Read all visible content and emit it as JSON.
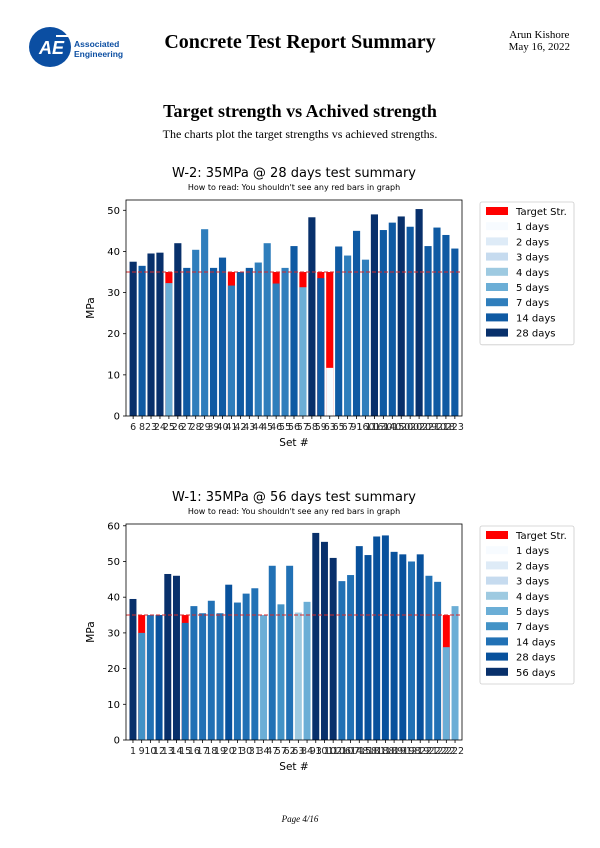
{
  "header": {
    "logo_text_line1": "Associated",
    "logo_text_line2": "Engineering",
    "title": "Concrete Test Report Summary",
    "author": "Arun Kishore",
    "date": "May 16, 2022"
  },
  "section": {
    "title": "Target strength vs Achived strength",
    "description": "The charts plot the target strengths vs achieved strengths."
  },
  "footer": {
    "page": "Page 4/16"
  },
  "colors": {
    "target": "#ff0000",
    "target_line": "#d62728"
  },
  "chart_data": [
    {
      "type": "bar",
      "title": "W-2: 35MPa @ 28 days test summary",
      "subtitle": "How to read: You shouldn't see any red bars in graph",
      "xlabel": "Set #",
      "ylabel": "MPa",
      "ylim": [
        0,
        52.5
      ],
      "yticks": [
        0,
        10,
        20,
        30,
        40,
        50
      ],
      "target": 35,
      "legend_position": "outside-right",
      "categories": [
        "6",
        "8",
        "23",
        "24",
        "25",
        "26",
        "27",
        "28",
        "29",
        "39",
        "40",
        "41",
        "42",
        "43",
        "44",
        "45",
        "46",
        "55",
        "56",
        "57",
        "58",
        "59",
        "63",
        "65",
        "67",
        "91",
        "160",
        "116",
        "130",
        "140",
        "150",
        "200",
        "202",
        "209",
        "210",
        "218",
        "223"
      ],
      "series_order": [
        "Target Str.",
        "1 days",
        "2 days",
        "3 days",
        "4 days",
        "5 days",
        "7 days",
        "14 days",
        "28 days"
      ],
      "series_colors": [
        "#ff0000",
        "#f7fbff",
        "#deebf7",
        "#c6dbef",
        "#9ecae1",
        "#6baed6",
        "#2f7ebc",
        "#0f5aa3",
        "#08306b"
      ],
      "values": [
        {
          "set": "6",
          "age": "28 days",
          "value": 37.5
        },
        {
          "set": "8",
          "age": "14 days",
          "value": 36.5
        },
        {
          "set": "23",
          "age": "28 days",
          "value": 39.5
        },
        {
          "set": "24",
          "age": "28 days",
          "value": 39.7
        },
        {
          "set": "25",
          "age": "5 days",
          "value": 32.3
        },
        {
          "set": "26",
          "age": "28 days",
          "value": 42
        },
        {
          "set": "27",
          "age": "14 days",
          "value": 36
        },
        {
          "set": "28",
          "age": "7 days",
          "value": 40.4
        },
        {
          "set": "29",
          "age": "7 days",
          "value": 45.4
        },
        {
          "set": "39",
          "age": "14 days",
          "value": 36
        },
        {
          "set": "40",
          "age": "14 days",
          "value": 38.5
        },
        {
          "set": "41",
          "age": "7 days",
          "value": 31.7
        },
        {
          "set": "42",
          "age": "14 days",
          "value": 35
        },
        {
          "set": "43",
          "age": "14 days",
          "value": 36
        },
        {
          "set": "44",
          "age": "7 days",
          "value": 37.3
        },
        {
          "set": "45",
          "age": "7 days",
          "value": 42
        },
        {
          "set": "46",
          "age": "7 days",
          "value": 32.2
        },
        {
          "set": "55",
          "age": "7 days",
          "value": 36
        },
        {
          "set": "56",
          "age": "14 days",
          "value": 41.3
        },
        {
          "set": "57",
          "age": "5 days",
          "value": 31.3
        },
        {
          "set": "58",
          "age": "28 days",
          "value": 48.3
        },
        {
          "set": "59",
          "age": "14 days",
          "value": 33.5
        },
        {
          "set": "63",
          "age": "1 days",
          "value": 11.7
        },
        {
          "set": "65",
          "age": "14 days",
          "value": 41.2
        },
        {
          "set": "67",
          "age": "7 days",
          "value": 39
        },
        {
          "set": "91",
          "age": "14 days",
          "value": 45
        },
        {
          "set": "160",
          "age": "7 days",
          "value": 38
        },
        {
          "set": "116",
          "age": "28 days",
          "value": 49
        },
        {
          "set": "130",
          "age": "14 days",
          "value": 45.2
        },
        {
          "set": "140",
          "age": "14 days",
          "value": 47
        },
        {
          "set": "150",
          "age": "28 days",
          "value": 48.5
        },
        {
          "set": "200",
          "age": "14 days",
          "value": 46
        },
        {
          "set": "202",
          "age": "28 days",
          "value": 50.3
        },
        {
          "set": "209",
          "age": "14 days",
          "value": 41.3
        },
        {
          "set": "210",
          "age": "14 days",
          "value": 45.8
        },
        {
          "set": "218",
          "age": "14 days",
          "value": 44
        },
        {
          "set": "223",
          "age": "14 days",
          "value": 40.7
        }
      ]
    },
    {
      "type": "bar",
      "title": "W-1: 35MPa @ 56 days test summary",
      "subtitle": "How to read: You shouldn't see any red bars in graph",
      "xlabel": "Set #",
      "ylabel": "MPa",
      "ylim": [
        0,
        60.5
      ],
      "yticks": [
        0,
        10,
        20,
        30,
        40,
        50,
        60
      ],
      "target": 35,
      "legend_position": "outside-right",
      "categories": [
        "1",
        "9",
        "10",
        "12",
        "13",
        "14",
        "15",
        "16",
        "17",
        "18",
        "19",
        "20",
        "21",
        "30",
        "31",
        "34",
        "47",
        "57",
        "62",
        "63",
        "84",
        "93",
        "101",
        "102",
        "106",
        "107",
        "148",
        "158",
        "181",
        "188",
        "189",
        "191",
        "198",
        "219",
        "221",
        "222"
      ],
      "series_order": [
        "Target Str.",
        "1 days",
        "2 days",
        "3 days",
        "4 days",
        "5 days",
        "7 days",
        "14 days",
        "28 days",
        "56 days"
      ],
      "series_colors": [
        "#ff0000",
        "#f7fbff",
        "#deebf7",
        "#c6dbef",
        "#9ecae1",
        "#6baed6",
        "#4292c6",
        "#2171b5",
        "#08519c",
        "#08306b"
      ],
      "values": [
        {
          "set": "1",
          "age": "56 days",
          "value": 39.5
        },
        {
          "set": "9",
          "age": "7 days",
          "value": 30
        },
        {
          "set": "10",
          "age": "14 days",
          "value": 35
        },
        {
          "set": "12",
          "age": "28 days",
          "value": 35
        },
        {
          "set": "13",
          "age": "56 days",
          "value": 46.5
        },
        {
          "set": "14",
          "age": "56 days",
          "value": 46
        },
        {
          "set": "15",
          "age": "14 days",
          "value": 32.8
        },
        {
          "set": "16",
          "age": "14 days",
          "value": 37.5
        },
        {
          "set": "17",
          "age": "14 days",
          "value": 35.5
        },
        {
          "set": "18",
          "age": "14 days",
          "value": 39
        },
        {
          "set": "19",
          "age": "14 days",
          "value": 35.5
        },
        {
          "set": "20",
          "age": "28 days",
          "value": 43.5
        },
        {
          "set": "21",
          "age": "14 days",
          "value": 38.5
        },
        {
          "set": "30",
          "age": "14 days",
          "value": 41
        },
        {
          "set": "31",
          "age": "14 days",
          "value": 42.5
        },
        {
          "set": "34",
          "age": "5 days",
          "value": 35
        },
        {
          "set": "47",
          "age": "14 days",
          "value": 48.8
        },
        {
          "set": "57",
          "age": "7 days",
          "value": 38
        },
        {
          "set": "62",
          "age": "14 days",
          "value": 48.8
        },
        {
          "set": "63",
          "age": "4 days",
          "value": 35.7
        },
        {
          "set": "84",
          "age": "5 days",
          "value": 38.7
        },
        {
          "set": "93",
          "age": "56 days",
          "value": 58
        },
        {
          "set": "101",
          "age": "56 days",
          "value": 55.5
        },
        {
          "set": "102",
          "age": "56 days",
          "value": 51
        },
        {
          "set": "106",
          "age": "14 days",
          "value": 44.5
        },
        {
          "set": "107",
          "age": "14 days",
          "value": 46.2
        },
        {
          "set": "148",
          "age": "28 days",
          "value": 54.3
        },
        {
          "set": "158",
          "age": "28 days",
          "value": 51.8
        },
        {
          "set": "181",
          "age": "28 days",
          "value": 57
        },
        {
          "set": "188",
          "age": "28 days",
          "value": 57.3
        },
        {
          "set": "189",
          "age": "28 days",
          "value": 52.7
        },
        {
          "set": "191",
          "age": "28 days",
          "value": 52
        },
        {
          "set": "198",
          "age": "14 days",
          "value": 50
        },
        {
          "set": "219",
          "age": "28 days",
          "value": 52
        },
        {
          "set": "221",
          "age": "14 days",
          "value": 46
        },
        {
          "set": "222a",
          "label": "222",
          "age": "14 days",
          "value": 44.3
        },
        {
          "set": "222b",
          "label": "222",
          "age": "5 days",
          "value": 26
        },
        {
          "set": "222c",
          "label": "222",
          "age": "5 days",
          "value": 37.5
        }
      ]
    }
  ]
}
